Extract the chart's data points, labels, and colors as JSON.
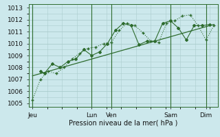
{
  "bg_color": "#cce8ec",
  "grid_color": "#aacccc",
  "line_color": "#2d6b2d",
  "title": "Pression niveau de la mer( hPa )",
  "ylabel_ticks": [
    1005,
    1006,
    1007,
    1008,
    1009,
    1010,
    1011,
    1012,
    1013
  ],
  "ylim": [
    1004.7,
    1013.3
  ],
  "xlim": [
    0,
    96
  ],
  "day_ticks_pos": [
    2,
    32,
    42,
    72,
    90
  ],
  "day_labels": [
    "Jeu",
    "Lun",
    "Ven",
    "Sam",
    "Dim"
  ],
  "vlines_x": [
    2,
    32,
    42,
    72,
    90
  ],
  "series1_x": [
    2,
    6,
    10,
    14,
    18,
    22,
    26,
    30,
    34,
    38,
    42,
    46,
    50,
    54,
    58,
    62,
    66,
    70,
    74,
    78,
    82,
    86,
    90,
    94
  ],
  "series1_y": [
    1005.3,
    1007.0,
    1007.7,
    1007.5,
    1008.0,
    1008.7,
    1009.2,
    1009.6,
    1009.7,
    1010.0,
    1010.1,
    1011.1,
    1011.7,
    1011.5,
    1010.9,
    1010.2,
    1010.1,
    1011.7,
    1011.9,
    1012.3,
    1012.4,
    1011.5,
    1010.3,
    1011.5
  ],
  "series2_x": [
    6,
    8,
    12,
    16,
    20,
    24,
    28,
    32,
    36,
    40,
    44,
    48,
    52,
    56,
    60,
    64,
    68,
    72,
    76,
    80,
    84,
    88,
    92
  ],
  "series2_y": [
    1007.7,
    1007.5,
    1008.3,
    1008.0,
    1008.5,
    1008.7,
    1009.5,
    1009.0,
    1009.3,
    1010.0,
    1011.1,
    1011.7,
    1011.5,
    1009.9,
    1010.2,
    1010.2,
    1011.7,
    1011.9,
    1011.3,
    1010.3,
    1011.5,
    1011.5,
    1011.6
  ],
  "trend_x": [
    2,
    94
  ],
  "trend_y": [
    1007.3,
    1011.6
  ]
}
